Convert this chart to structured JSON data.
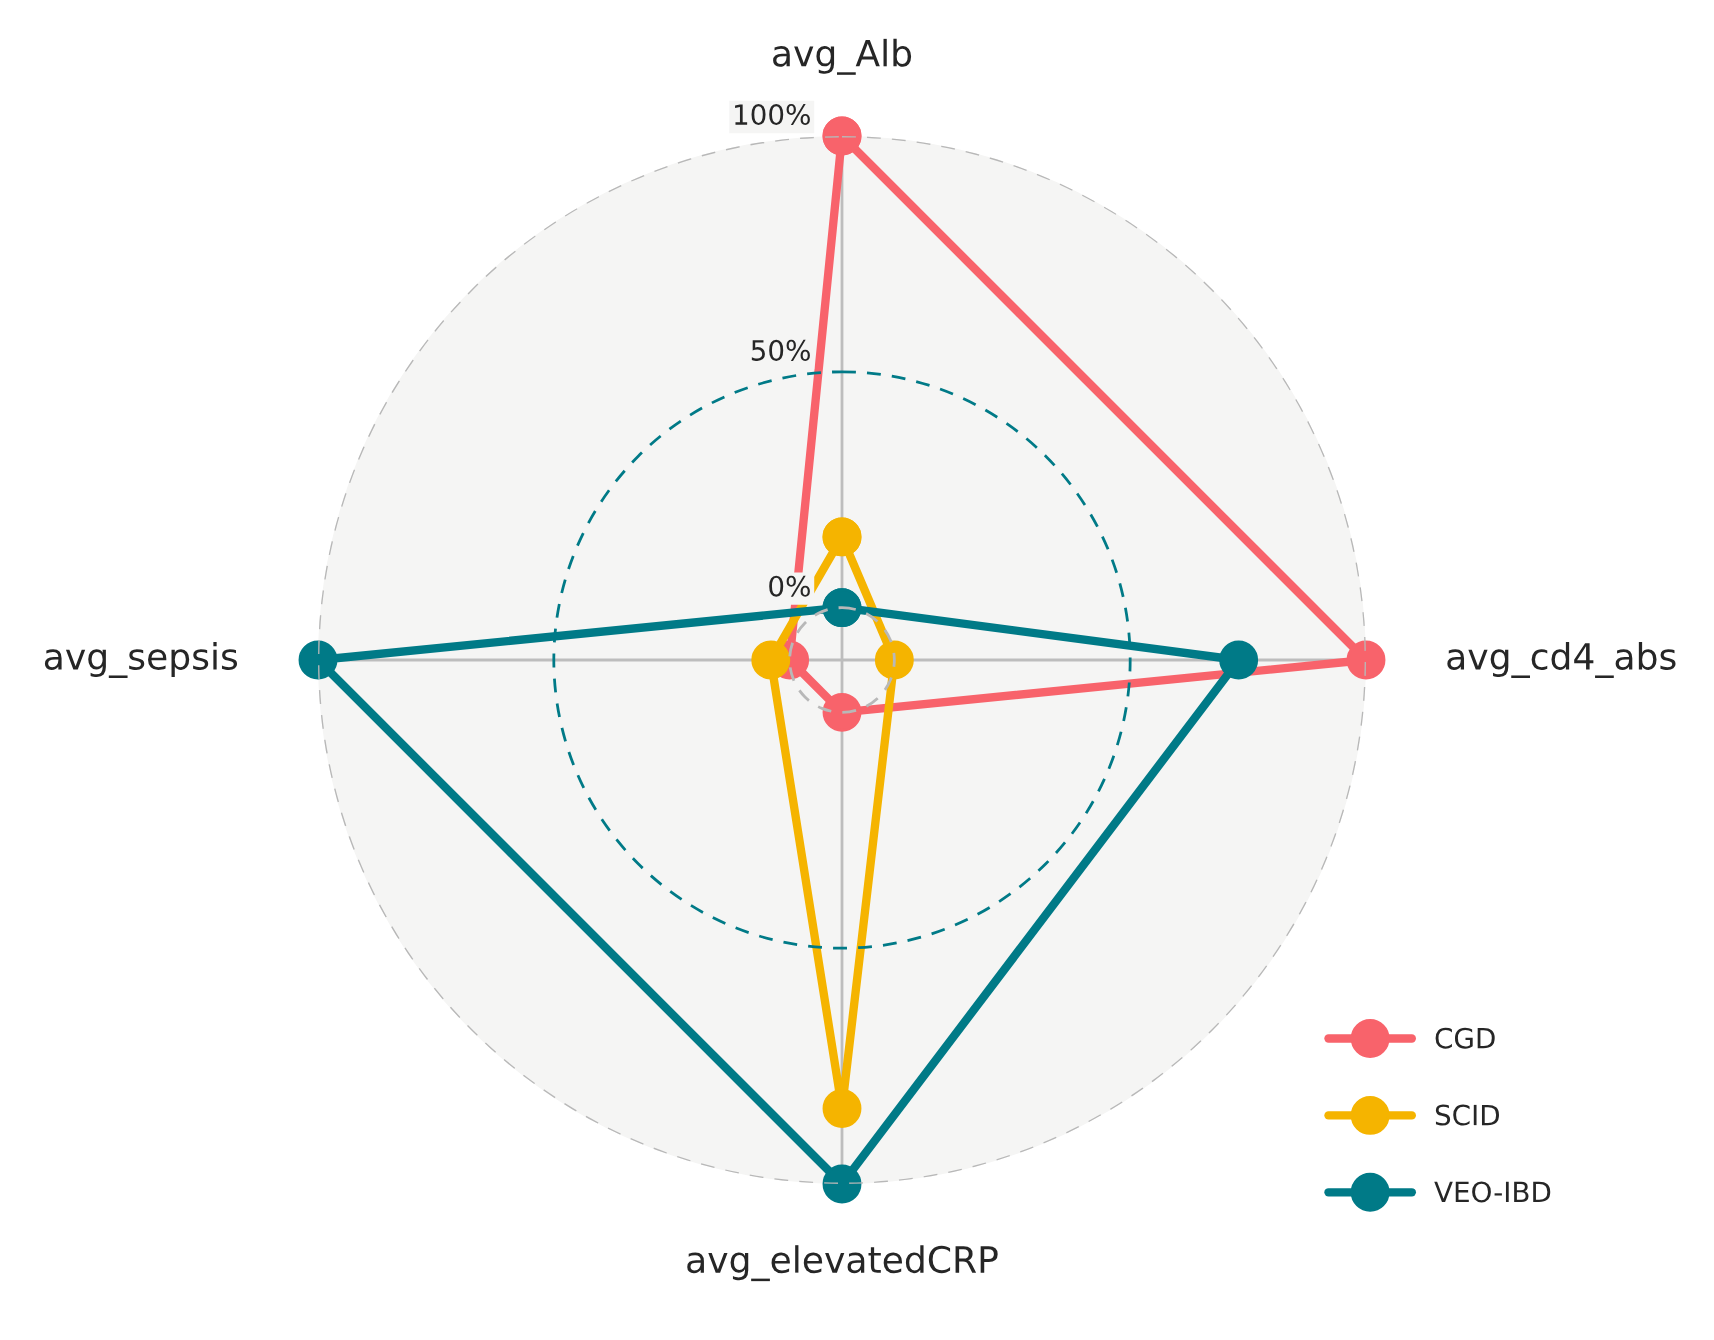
{
  "chart_data": {
    "type": "radar",
    "categories": [
      "avg_Alb",
      "avg_cd4_abs",
      "avg_elevatedCRP",
      "avg_sepsis"
    ],
    "series": [
      {
        "name": "CGD",
        "color": "#f8636b",
        "values": [
          100,
          100,
          0,
          0
        ]
      },
      {
        "name": "SCID",
        "color": "#f5b400",
        "values": [
          15,
          0,
          84,
          4
        ]
      },
      {
        "name": "VEO-IBD",
        "color": "#007a87",
        "values": [
          0,
          73,
          100,
          100
        ]
      }
    ],
    "ylim": [
      -11.1,
      100
    ],
    "yticks": [
      {
        "value": 0,
        "label": "0%"
      },
      {
        "value": 50,
        "label": "50%"
      },
      {
        "value": 100,
        "label": "100%"
      }
    ],
    "grid": true,
    "legend": "bottom right",
    "marker": "circle",
    "line_style": "solid"
  }
}
